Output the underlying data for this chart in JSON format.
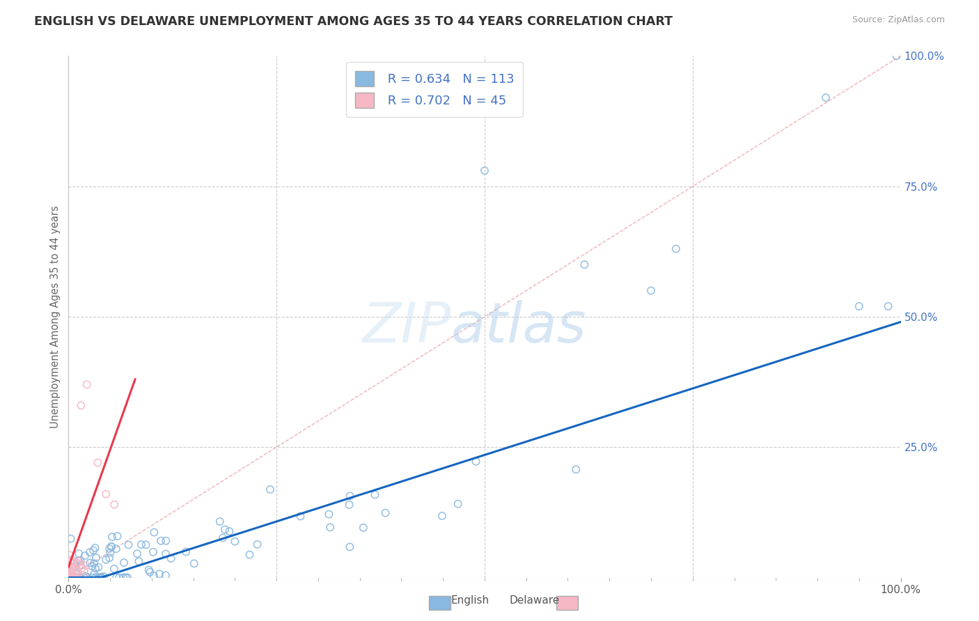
{
  "title": "ENGLISH VS DELAWARE UNEMPLOYMENT AMONG AGES 35 TO 44 YEARS CORRELATION CHART",
  "source": "Source: ZipAtlas.com",
  "ylabel": "Unemployment Among Ages 35 to 44 years",
  "xlabel": "",
  "xlim": [
    0,
    1
  ],
  "ylim": [
    0,
    1
  ],
  "english_color": "#89b8e0",
  "english_edge_color": "#5a9fd4",
  "delaware_color": "#f5b8c4",
  "delaware_edge_color": "#e07090",
  "regression_english_color": "#1565c0",
  "regression_delaware_color": "#e8384a",
  "r_english": 0.634,
  "n_english": 113,
  "r_delaware": 0.702,
  "n_delaware": 45,
  "watermark": "ZIPatlas",
  "background_color": "#ffffff",
  "grid_color": "#cccccc",
  "title_color": "#333333",
  "legend_text_color": "#4472c4",
  "right_axis_color": "#4472c4"
}
